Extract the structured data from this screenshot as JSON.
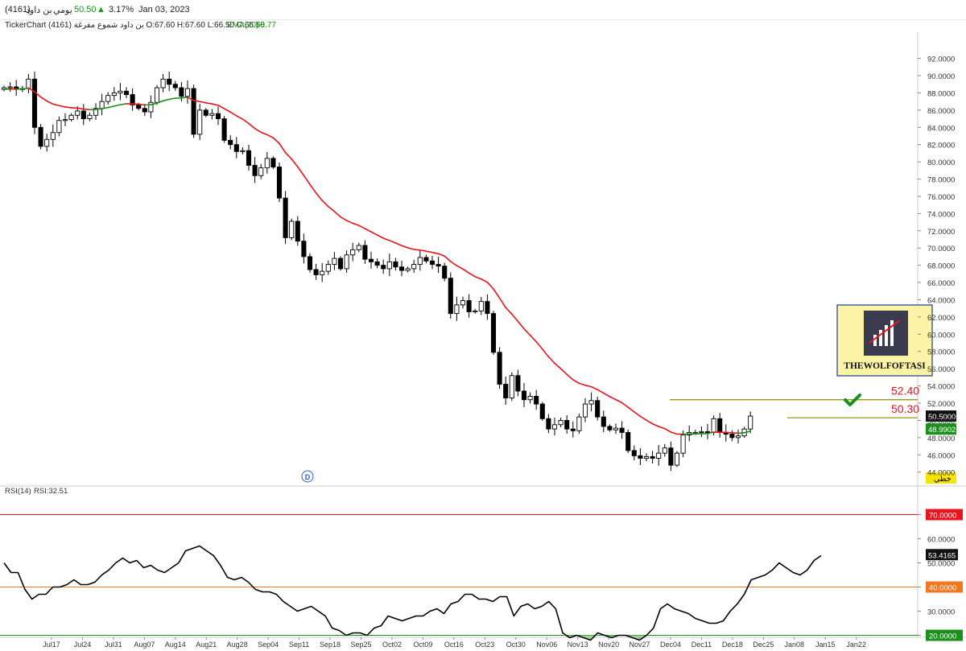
{
  "header": {
    "company": "بن داود",
    "code": "(4161)",
    "period": "يومي",
    "price": "50.50",
    "change_pct": "3.17%",
    "date": "Jan 03, 2023",
    "up_symbol": "▲"
  },
  "infobar": {
    "brand": "TickerChart",
    "ohlc": "بن داود شموع مفرغة (4161) O:67.60 H:67.60 L:66.50 C:66.50",
    "ema_label": "EMA(20)",
    "ema_value": "68.77"
  },
  "colors": {
    "up": "#ffffff",
    "down": "#000000",
    "ema_above": "#1a8f1a",
    "ema_below": "#e8141e",
    "rsi_line": "#000000",
    "level_70": "#e8141e",
    "level_40": "#f07820",
    "level_20": "#1a8f1a",
    "target_line": "#8c8c00"
  },
  "chart_data": [
    {
      "type": "candlestick",
      "x_label_dates": [
        "Jul17",
        "Jul24",
        "Jul31",
        "Aug07",
        "Aug14",
        "Aug21",
        "Aug28",
        "Sep04",
        "Sep11",
        "Sep18",
        "Sep25",
        "Oct02",
        "Oct09",
        "Oct16",
        "Oct23",
        "Oct30",
        "Nov06",
        "Nov13",
        "Nov20",
        "Nov27",
        "Dec04",
        "Dec11",
        "Dec18",
        "Dec25",
        "Jan08",
        "Jan15",
        "Jan22"
      ],
      "y_ticks": [
        "44.0000",
        "46.0000",
        "48.0000",
        "50.0000",
        "52.0000",
        "54.0000",
        "56.0000",
        "58.0000",
        "60.0000",
        "62.0000",
        "64.0000",
        "66.0000",
        "68.0000",
        "70.0000",
        "72.0000",
        "74.0000",
        "76.0000",
        "78.0000",
        "80.0000",
        "82.0000",
        "84.0000",
        "86.0000",
        "88.0000",
        "90.0000",
        "92.0000"
      ],
      "ylim": [
        43,
        93
      ],
      "close_series": [
        88.6,
        88.7,
        88.4,
        88.5,
        89.6,
        84.0,
        81.8,
        82.6,
        83.4,
        84.8,
        84.9,
        85.4,
        85.9,
        85.0,
        85.4,
        86.2,
        87.0,
        87.7,
        88.0,
        88.2,
        87.8,
        86.6,
        86.2,
        85.8,
        86.9,
        88.6,
        89.6,
        89.0,
        88.6,
        87.6,
        88.5,
        83.2,
        86.0,
        85.4,
        85.6,
        85.0,
        82.5,
        82.0,
        81.2,
        81.3,
        79.6,
        78.4,
        79.3,
        80.4,
        79.4,
        75.8,
        71.2,
        73.1,
        70.8,
        69.0,
        67.5,
        66.9,
        67.3,
        68.1,
        68.8,
        67.6,
        69.2,
        69.8,
        70.3,
        68.7,
        68.4,
        68.0,
        67.6,
        68.4,
        67.8,
        67.4,
        67.6,
        68.1,
        68.9,
        68.5,
        68.1,
        67.9,
        66.5,
        62.4,
        63.4,
        63.9,
        62.6,
        62.7,
        63.8,
        62.4,
        57.9,
        54.2,
        52.6,
        55.2,
        53.4,
        52.4,
        52.8,
        51.9,
        50.2,
        49.0,
        49.5,
        50.0,
        49.0,
        48.8,
        50.4,
        51.9,
        52.3,
        50.4,
        49.3,
        48.9,
        49.1,
        48.6,
        46.5,
        45.9,
        45.6,
        45.8,
        45.6,
        46.2,
        46.8,
        44.8,
        46.2,
        48.3,
        48.6,
        48.6,
        48.7,
        48.6,
        50.2,
        48.6,
        48.4,
        48.0,
        48.2,
        49.0,
        50.5
      ],
      "ema20_last": "48.9902",
      "last_price_label": "50.5000",
      "annotations": {
        "target_1": "52.40",
        "target_2": "50.30",
        "target_1_value": 52.4,
        "target_2_value": 50.3,
        "linear_label": "خطي",
        "logo_text": "THEWOLFOFTASI",
        "d_marker": "D"
      }
    },
    {
      "type": "line",
      "title": "RSI(14)",
      "value_label": "RSI:32.51",
      "ylim": [
        17,
        73
      ],
      "y_ticks": [
        "20.0000",
        "30.0000",
        "40.0000",
        "50.0000",
        "60.0000",
        "70.0000"
      ],
      "levels": [
        {
          "value": 70,
          "label": "70.0000"
        },
        {
          "value": 40,
          "label": "40.0000"
        },
        {
          "value": 20,
          "label": "20.0000"
        }
      ],
      "last_label": "53.4165",
      "values": [
        50,
        46,
        46,
        39,
        35,
        37,
        37,
        40,
        40,
        41,
        43,
        41,
        41,
        42,
        45,
        47,
        50,
        52,
        50,
        51,
        48,
        49,
        47,
        46,
        48,
        50,
        55,
        56,
        57,
        55,
        53,
        49,
        44,
        43,
        44,
        42,
        39,
        38,
        38,
        37,
        34,
        32,
        30,
        31,
        32,
        30,
        28,
        23,
        22,
        20,
        21,
        21,
        20,
        23,
        24,
        28,
        27,
        26,
        27,
        28,
        28,
        30,
        31,
        29,
        33,
        34,
        37,
        37,
        35,
        35,
        34,
        36,
        36,
        28,
        32,
        33,
        31,
        32,
        34,
        31,
        21,
        19,
        20,
        19,
        18,
        21,
        20,
        19,
        20,
        20,
        19,
        18,
        20,
        23,
        31,
        33,
        31,
        30,
        29,
        27,
        26,
        25,
        25,
        26,
        30,
        33,
        37,
        43,
        44,
        45,
        47,
        50,
        48,
        46,
        45,
        47,
        51,
        53
      ]
    }
  ]
}
